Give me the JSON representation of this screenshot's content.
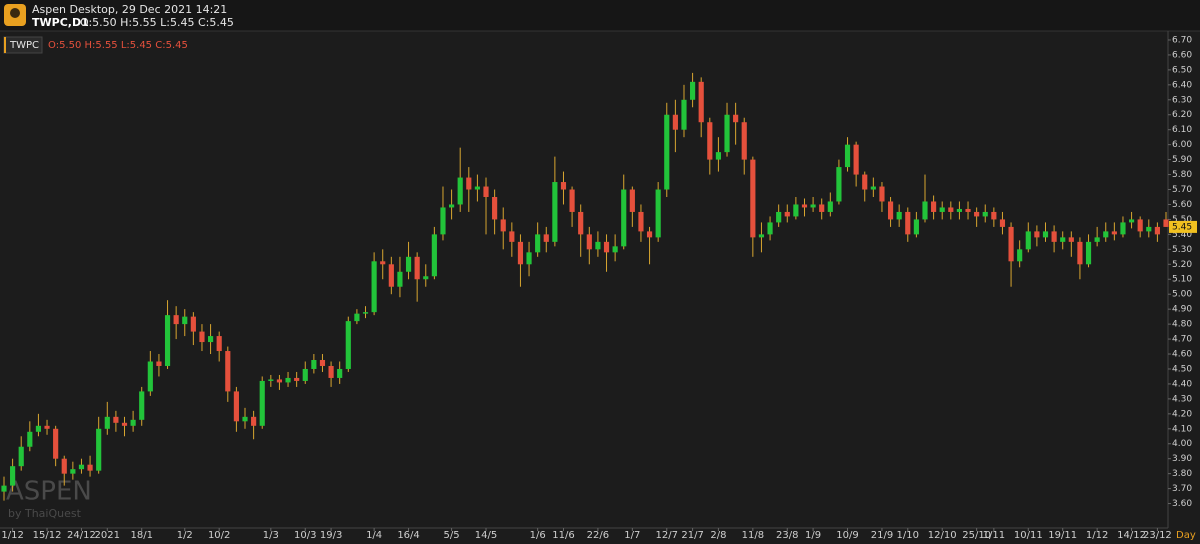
{
  "header": {
    "app_title": "Aspen Desktop, 29 Dec 2021 14:21",
    "symbol": "TWPC,D1",
    "ohlc": "O:5.50 H:5.55 L:5.45 C:5.45"
  },
  "chart_data": {
    "type": "candlestick",
    "symbol": "TWPC",
    "ohlc_label": "O:5.50 H:5.55 L:5.45 C:5.45",
    "watermark": "ASPEN",
    "watermark_sub": "by ThaiQuest",
    "timeframe": "Day",
    "categories": [
      null,
      "1/12",
      null,
      null,
      null,
      "15/12",
      null,
      null,
      null,
      "24/12",
      null,
      null,
      "2021",
      null,
      null,
      null,
      "18/1",
      null,
      null,
      null,
      null,
      "1/2",
      null,
      null,
      null,
      "10/2",
      null,
      null,
      null,
      null,
      null,
      "1/3",
      null,
      null,
      null,
      "10/3",
      null,
      null,
      "19/3",
      null,
      null,
      null,
      null,
      "1/4",
      null,
      null,
      null,
      "16/4",
      null,
      null,
      null,
      null,
      "5/5",
      null,
      null,
      null,
      "14/5",
      null,
      null,
      null,
      null,
      null,
      "1/6",
      null,
      null,
      "11/6",
      null,
      null,
      null,
      "22/6",
      null,
      null,
      null,
      "1/7",
      null,
      null,
      null,
      "12/7",
      null,
      null,
      "21/7",
      null,
      null,
      "2/8",
      null,
      null,
      null,
      "11/8",
      null,
      null,
      null,
      "23/8",
      null,
      null,
      "1/9",
      null,
      null,
      null,
      "10/9",
      null,
      null,
      null,
      "21/9",
      null,
      null,
      "1/10",
      null,
      null,
      null,
      "12/10",
      null,
      null,
      null,
      "25/10",
      null,
      "1/11",
      null,
      null,
      null,
      "10/11",
      null,
      null,
      null,
      "19/11",
      null,
      null,
      null,
      "1/12",
      null,
      null,
      null,
      "14/12",
      null,
      null,
      "23/12",
      null
    ],
    "open": [
      3.68,
      3.72,
      3.85,
      3.98,
      4.08,
      4.12,
      4.1,
      3.9,
      3.8,
      3.83,
      3.86,
      3.82,
      4.1,
      4.18,
      4.14,
      4.12,
      4.16,
      4.35,
      4.55,
      4.52,
      4.86,
      4.8,
      4.85,
      4.75,
      4.68,
      4.72,
      4.62,
      4.35,
      4.15,
      4.18,
      4.12,
      4.42,
      4.43,
      4.41,
      4.44,
      4.42,
      4.5,
      4.56,
      4.52,
      4.44,
      4.5,
      4.82,
      4.87,
      4.88,
      5.22,
      5.2,
      5.05,
      5.15,
      5.25,
      5.1,
      5.12,
      5.4,
      5.58,
      5.6,
      5.78,
      5.7,
      5.72,
      5.65,
      5.5,
      5.42,
      5.35,
      5.2,
      5.28,
      5.4,
      5.35,
      5.75,
      5.7,
      5.55,
      5.4,
      5.3,
      5.35,
      5.28,
      5.32,
      5.7,
      5.55,
      5.42,
      5.38,
      5.7,
      6.2,
      6.1,
      6.3,
      6.42,
      6.15,
      5.9,
      5.95,
      6.2,
      6.15,
      5.9,
      5.38,
      5.4,
      5.48,
      5.55,
      5.52,
      5.6,
      5.58,
      5.6,
      5.55,
      5.62,
      5.85,
      6.0,
      5.8,
      5.7,
      5.72,
      5.62,
      5.5,
      5.55,
      5.4,
      5.5,
      5.62,
      5.55,
      5.58,
      5.55,
      5.57,
      5.55,
      5.52,
      5.55,
      5.5,
      5.45,
      5.22,
      5.3,
      5.42,
      5.38,
      5.42,
      5.35,
      5.38,
      5.35,
      5.2,
      5.35,
      5.38,
      5.42,
      5.4,
      5.48,
      5.5,
      5.42,
      5.45,
      5.5
    ],
    "high": [
      3.78,
      3.9,
      4.05,
      4.15,
      4.2,
      4.16,
      4.12,
      3.92,
      3.88,
      3.9,
      3.92,
      4.18,
      4.28,
      4.22,
      4.18,
      4.22,
      4.38,
      4.62,
      4.6,
      4.96,
      4.92,
      4.9,
      4.88,
      4.8,
      4.8,
      4.75,
      4.65,
      4.38,
      4.24,
      4.22,
      4.45,
      4.46,
      4.46,
      4.48,
      4.48,
      4.55,
      4.6,
      4.6,
      4.55,
      4.55,
      4.85,
      4.9,
      4.92,
      5.28,
      5.3,
      5.25,
      5.25,
      5.35,
      5.28,
      5.2,
      5.45,
      5.72,
      5.7,
      5.98,
      5.85,
      5.8,
      5.78,
      5.7,
      5.58,
      5.48,
      5.4,
      5.35,
      5.48,
      5.45,
      5.92,
      5.82,
      5.72,
      5.6,
      5.45,
      5.42,
      5.4,
      5.4,
      5.8,
      5.72,
      5.6,
      5.45,
      5.75,
      6.28,
      6.3,
      6.4,
      6.48,
      6.45,
      6.18,
      6.05,
      6.28,
      6.28,
      6.18,
      5.92,
      5.48,
      5.52,
      5.6,
      5.6,
      5.65,
      5.64,
      5.65,
      5.64,
      5.68,
      5.9,
      6.05,
      6.02,
      5.82,
      5.78,
      5.75,
      5.65,
      5.6,
      5.58,
      5.55,
      5.8,
      5.66,
      5.62,
      5.62,
      5.62,
      5.62,
      5.58,
      5.6,
      5.58,
      5.55,
      5.48,
      5.36,
      5.48,
      5.46,
      5.48,
      5.46,
      5.42,
      5.42,
      5.38,
      5.4,
      5.45,
      5.48,
      5.48,
      5.52,
      5.55,
      5.52,
      5.5,
      5.48,
      5.55
    ],
    "low": [
      3.62,
      3.68,
      3.82,
      3.95,
      4.05,
      4.06,
      3.85,
      3.72,
      3.76,
      3.8,
      3.78,
      3.8,
      4.06,
      4.08,
      4.05,
      4.08,
      4.12,
      4.32,
      4.45,
      4.5,
      4.7,
      4.72,
      4.66,
      4.62,
      4.6,
      4.55,
      4.28,
      4.08,
      4.1,
      4.03,
      4.1,
      4.38,
      4.36,
      4.38,
      4.38,
      4.4,
      4.47,
      4.48,
      4.38,
      4.4,
      4.48,
      4.8,
      4.84,
      4.86,
      5.1,
      5.0,
      4.98,
      5.1,
      4.95,
      5.05,
      5.1,
      5.36,
      5.5,
      5.55,
      5.55,
      5.62,
      5.4,
      5.4,
      5.3,
      5.25,
      5.05,
      5.12,
      5.25,
      5.28,
      5.32,
      5.6,
      5.45,
      5.25,
      5.2,
      5.25,
      5.15,
      5.22,
      5.3,
      5.45,
      5.35,
      5.2,
      5.35,
      5.65,
      5.95,
      6.05,
      6.25,
      6.05,
      5.8,
      5.82,
      5.92,
      6.0,
      5.8,
      5.25,
      5.28,
      5.36,
      5.45,
      5.48,
      5.5,
      5.52,
      5.55,
      5.5,
      5.52,
      5.6,
      5.82,
      5.72,
      5.62,
      5.65,
      5.55,
      5.45,
      5.45,
      5.35,
      5.38,
      5.48,
      5.5,
      5.5,
      5.5,
      5.5,
      5.5,
      5.45,
      5.48,
      5.45,
      5.4,
      5.05,
      5.18,
      5.28,
      5.32,
      5.35,
      5.28,
      5.3,
      5.25,
      5.1,
      5.18,
      5.32,
      5.35,
      5.36,
      5.38,
      5.44,
      5.38,
      5.38,
      5.35,
      5.45
    ],
    "close": [
      3.72,
      3.85,
      3.98,
      4.08,
      4.12,
      4.1,
      3.9,
      3.8,
      3.83,
      3.86,
      3.82,
      4.1,
      4.18,
      4.14,
      4.12,
      4.16,
      4.35,
      4.55,
      4.52,
      4.86,
      4.8,
      4.85,
      4.75,
      4.68,
      4.72,
      4.62,
      4.35,
      4.15,
      4.18,
      4.12,
      4.42,
      4.43,
      4.41,
      4.44,
      4.42,
      4.5,
      4.56,
      4.52,
      4.44,
      4.5,
      4.82,
      4.87,
      4.88,
      5.22,
      5.2,
      5.05,
      5.15,
      5.25,
      5.1,
      5.12,
      5.4,
      5.58,
      5.6,
      5.78,
      5.7,
      5.72,
      5.65,
      5.5,
      5.42,
      5.35,
      5.2,
      5.28,
      5.4,
      5.35,
      5.75,
      5.7,
      5.55,
      5.4,
      5.3,
      5.35,
      5.28,
      5.32,
      5.7,
      5.55,
      5.42,
      5.38,
      5.7,
      6.2,
      6.1,
      6.3,
      6.42,
      6.15,
      5.9,
      5.95,
      6.2,
      6.15,
      5.9,
      5.38,
      5.4,
      5.48,
      5.55,
      5.52,
      5.6,
      5.58,
      5.6,
      5.55,
      5.62,
      5.85,
      6.0,
      5.8,
      5.7,
      5.72,
      5.62,
      5.5,
      5.55,
      5.4,
      5.5,
      5.62,
      5.55,
      5.58,
      5.55,
      5.57,
      5.55,
      5.52,
      5.55,
      5.5,
      5.45,
      5.22,
      5.3,
      5.42,
      5.38,
      5.42,
      5.35,
      5.38,
      5.35,
      5.2,
      5.35,
      5.38,
      5.42,
      5.4,
      5.48,
      5.5,
      5.42,
      5.45,
      5.4,
      5.45
    ],
    "up_color": "#22c43a",
    "down_color": "#e5503c",
    "wick_color": "#d8a630",
    "ylim": [
      3.45,
      6.76
    ],
    "yticks": [
      {
        "value": 3.6,
        "label": "3.60"
      },
      {
        "value": 3.7,
        "label": "3.70"
      },
      {
        "value": 3.8,
        "label": "3.80"
      },
      {
        "value": 3.9,
        "label": "3.90"
      },
      {
        "value": 4.0,
        "label": "4.00"
      },
      {
        "value": 4.1,
        "label": "4.10"
      },
      {
        "value": 4.2,
        "label": "4.20"
      },
      {
        "value": 4.3,
        "label": "4.30"
      },
      {
        "value": 4.4,
        "label": "4.40"
      },
      {
        "value": 4.5,
        "label": "4.50"
      },
      {
        "value": 4.6,
        "label": "4.60"
      },
      {
        "value": 4.7,
        "label": "4.70"
      },
      {
        "value": 4.8,
        "label": "4.80"
      },
      {
        "value": 4.9,
        "label": "4.90"
      },
      {
        "value": 5.0,
        "label": "5.00"
      },
      {
        "value": 5.1,
        "label": "5.10"
      },
      {
        "value": 5.2,
        "label": "5.20"
      },
      {
        "value": 5.3,
        "label": "5.30"
      },
      {
        "value": 5.4,
        "label": "5.40"
      },
      {
        "value": 5.5,
        "label": "5.50"
      },
      {
        "value": 5.6,
        "label": "5.60"
      },
      {
        "value": 5.7,
        "label": "5.70"
      },
      {
        "value": 5.8,
        "label": "5.80"
      },
      {
        "value": 5.9,
        "label": "5.90"
      },
      {
        "value": 6.0,
        "label": "6.00"
      },
      {
        "value": 6.1,
        "label": "6.10"
      },
      {
        "value": 6.2,
        "label": "6.20"
      },
      {
        "value": 6.3,
        "label": "6.30"
      },
      {
        "value": 6.4,
        "label": "6.40"
      },
      {
        "value": 6.5,
        "label": "6.50"
      },
      {
        "value": 6.6,
        "label": "6.60"
      },
      {
        "value": 6.7,
        "label": "6.70"
      }
    ],
    "grid": false
  }
}
